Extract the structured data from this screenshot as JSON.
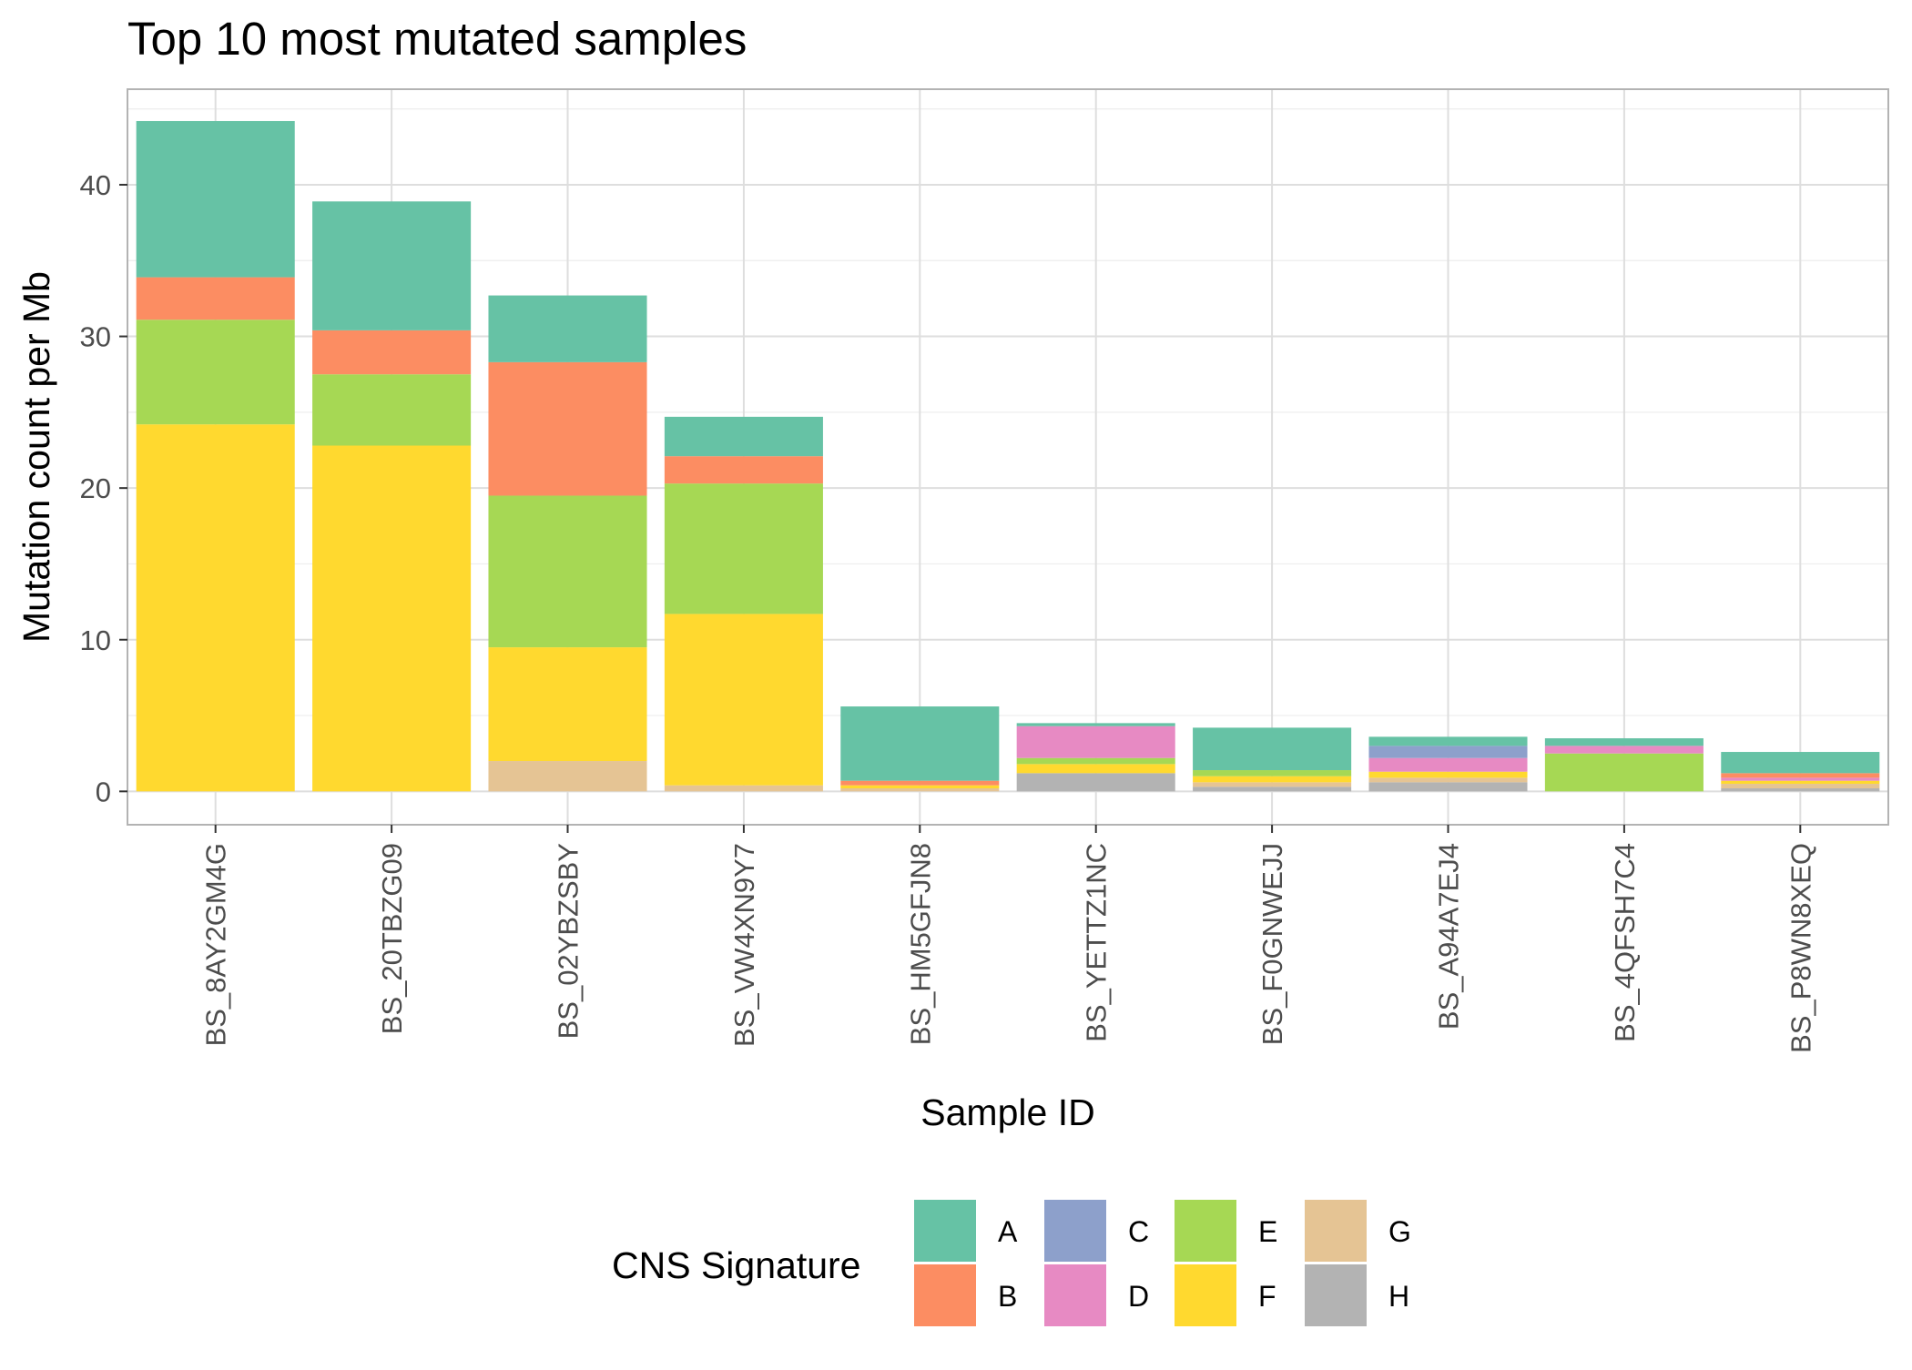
{
  "chart_data": {
    "type": "bar",
    "stacked": true,
    "title": "Top 10 most mutated samples",
    "xlabel": "Sample ID",
    "ylabel": "Mutation count per Mb",
    "ylim": [
      -2.2,
      46.3
    ],
    "yticks": [
      0,
      10,
      20,
      30,
      40
    ],
    "grid": true,
    "legend_position": "bottom",
    "legend_title": "CNS Signature",
    "categories": [
      "BS_8AY2GM4G",
      "BS_20TBZG09",
      "BS_02YBZSBY",
      "BS_VW4XN9Y7",
      "BS_HM5GFJN8",
      "BS_YETTZ1NC",
      "BS_F0GNWEJJ",
      "BS_A94A7EJ4",
      "BS_4QFSH7C4",
      "BS_P8WN8XEQ"
    ],
    "series": [
      {
        "name": "A",
        "color": "#66c2a5",
        "values": [
          10.3,
          8.5,
          4.4,
          2.6,
          4.9,
          0.2,
          2.8,
          0.6,
          0.5,
          1.4
        ]
      },
      {
        "name": "B",
        "color": "#fc8d62",
        "values": [
          2.8,
          2.9,
          8.8,
          1.8,
          0.3,
          0.0,
          0.0,
          0.0,
          0.0,
          0.3
        ]
      },
      {
        "name": "C",
        "color": "#8da0cb",
        "values": [
          0.0,
          0.0,
          0.0,
          0.0,
          0.0,
          0.0,
          0.0,
          0.8,
          0.0,
          0.0
        ]
      },
      {
        "name": "D",
        "color": "#e78ac3",
        "values": [
          0.0,
          0.0,
          0.0,
          0.0,
          0.0,
          2.1,
          0.0,
          0.9,
          0.5,
          0.2
        ]
      },
      {
        "name": "E",
        "color": "#a6d854",
        "values": [
          6.9,
          4.7,
          10.0,
          8.6,
          0.0,
          0.4,
          0.4,
          0.0,
          2.5,
          0.0
        ]
      },
      {
        "name": "F",
        "color": "#ffd92f",
        "values": [
          24.2,
          22.8,
          7.5,
          11.3,
          0.2,
          0.6,
          0.4,
          0.4,
          0.0,
          0.2
        ]
      },
      {
        "name": "G",
        "color": "#e5c494",
        "values": [
          0.0,
          0.0,
          2.0,
          0.4,
          0.2,
          0.0,
          0.3,
          0.3,
          0.0,
          0.3
        ]
      },
      {
        "name": "H",
        "color": "#b3b3b3",
        "values": [
          0.0,
          0.0,
          0.0,
          0.0,
          0.0,
          1.2,
          0.3,
          0.6,
          0.0,
          0.2
        ]
      }
    ]
  }
}
